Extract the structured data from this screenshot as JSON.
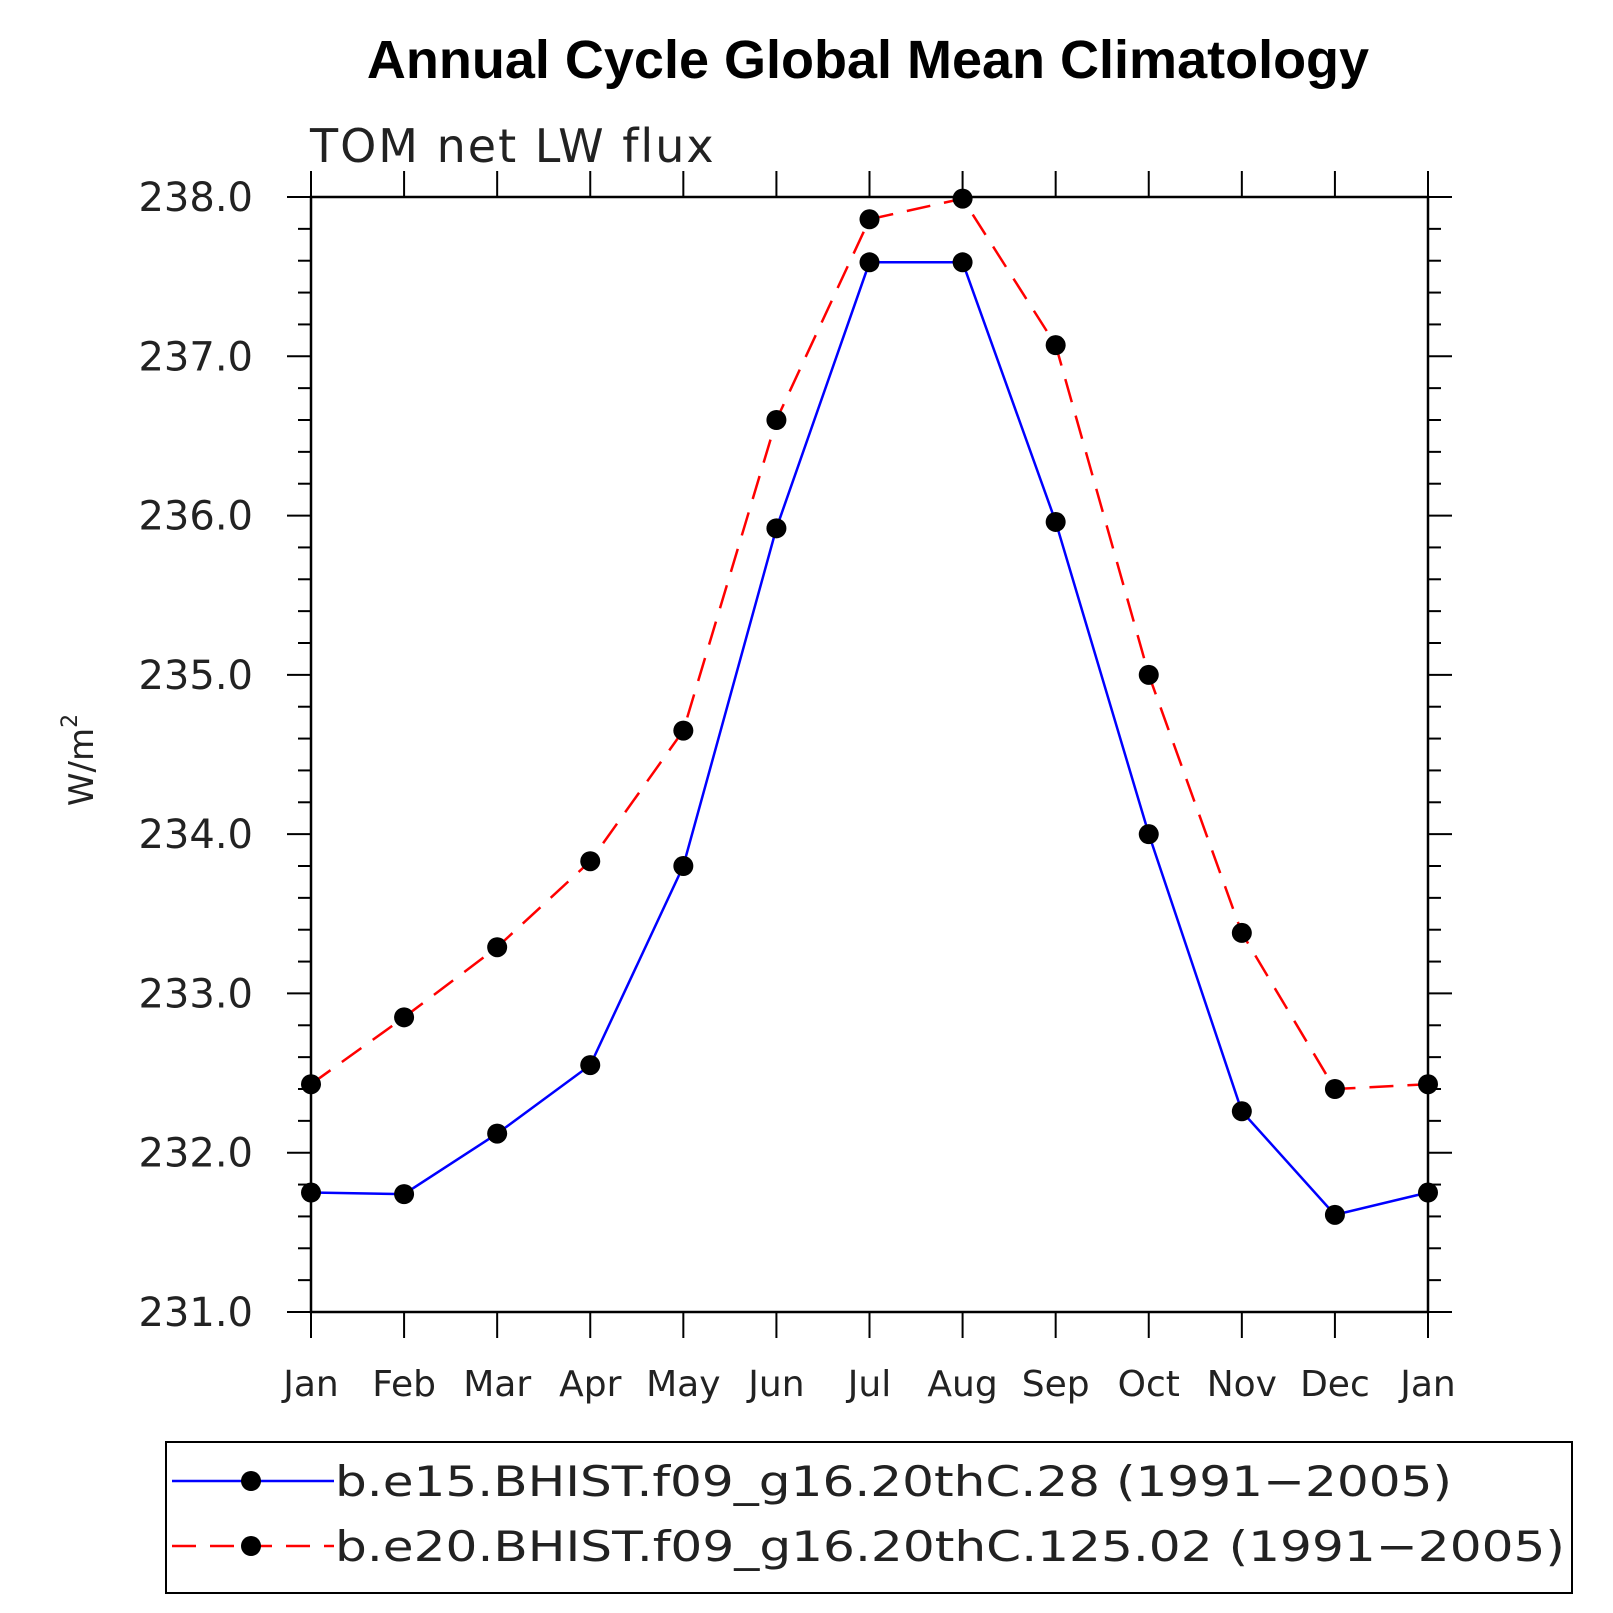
{
  "chart_data": {
    "type": "line",
    "title": "Annual Cycle Global Mean Climatology",
    "subtitle": "TOM net LW flux",
    "ylabel_base": "W/m",
    "ylabel_sup": "2",
    "categories": [
      "Jan",
      "Feb",
      "Mar",
      "Apr",
      "May",
      "Jun",
      "Jul",
      "Aug",
      "Sep",
      "Oct",
      "Nov",
      "Dec",
      "Jan"
    ],
    "ylim": [
      231.0,
      238.0
    ],
    "yticks": [
      "231.0",
      "232.0",
      "233.0",
      "234.0",
      "235.0",
      "236.0",
      "237.0",
      "238.0"
    ],
    "series": [
      {
        "name": "b.e15.BHIST.f09_g16.20thC.28 (1991−2005)",
        "color": "#0000ff",
        "dash": "solid",
        "values": [
          231.75,
          231.74,
          232.12,
          232.55,
          233.8,
          235.92,
          237.59,
          237.59,
          235.96,
          234.0,
          232.26,
          231.61,
          231.75
        ]
      },
      {
        "name": "b.e20.BHIST.f09_g16.20thC.125.02 (1991−2005)",
        "color": "#ff0000",
        "dash": "dashed",
        "values": [
          232.43,
          232.85,
          233.29,
          233.83,
          234.65,
          236.6,
          237.86,
          237.99,
          237.07,
          235.0,
          233.38,
          232.4,
          232.43
        ]
      }
    ],
    "marker_color": "#000000",
    "legend_position": "bottom"
  }
}
